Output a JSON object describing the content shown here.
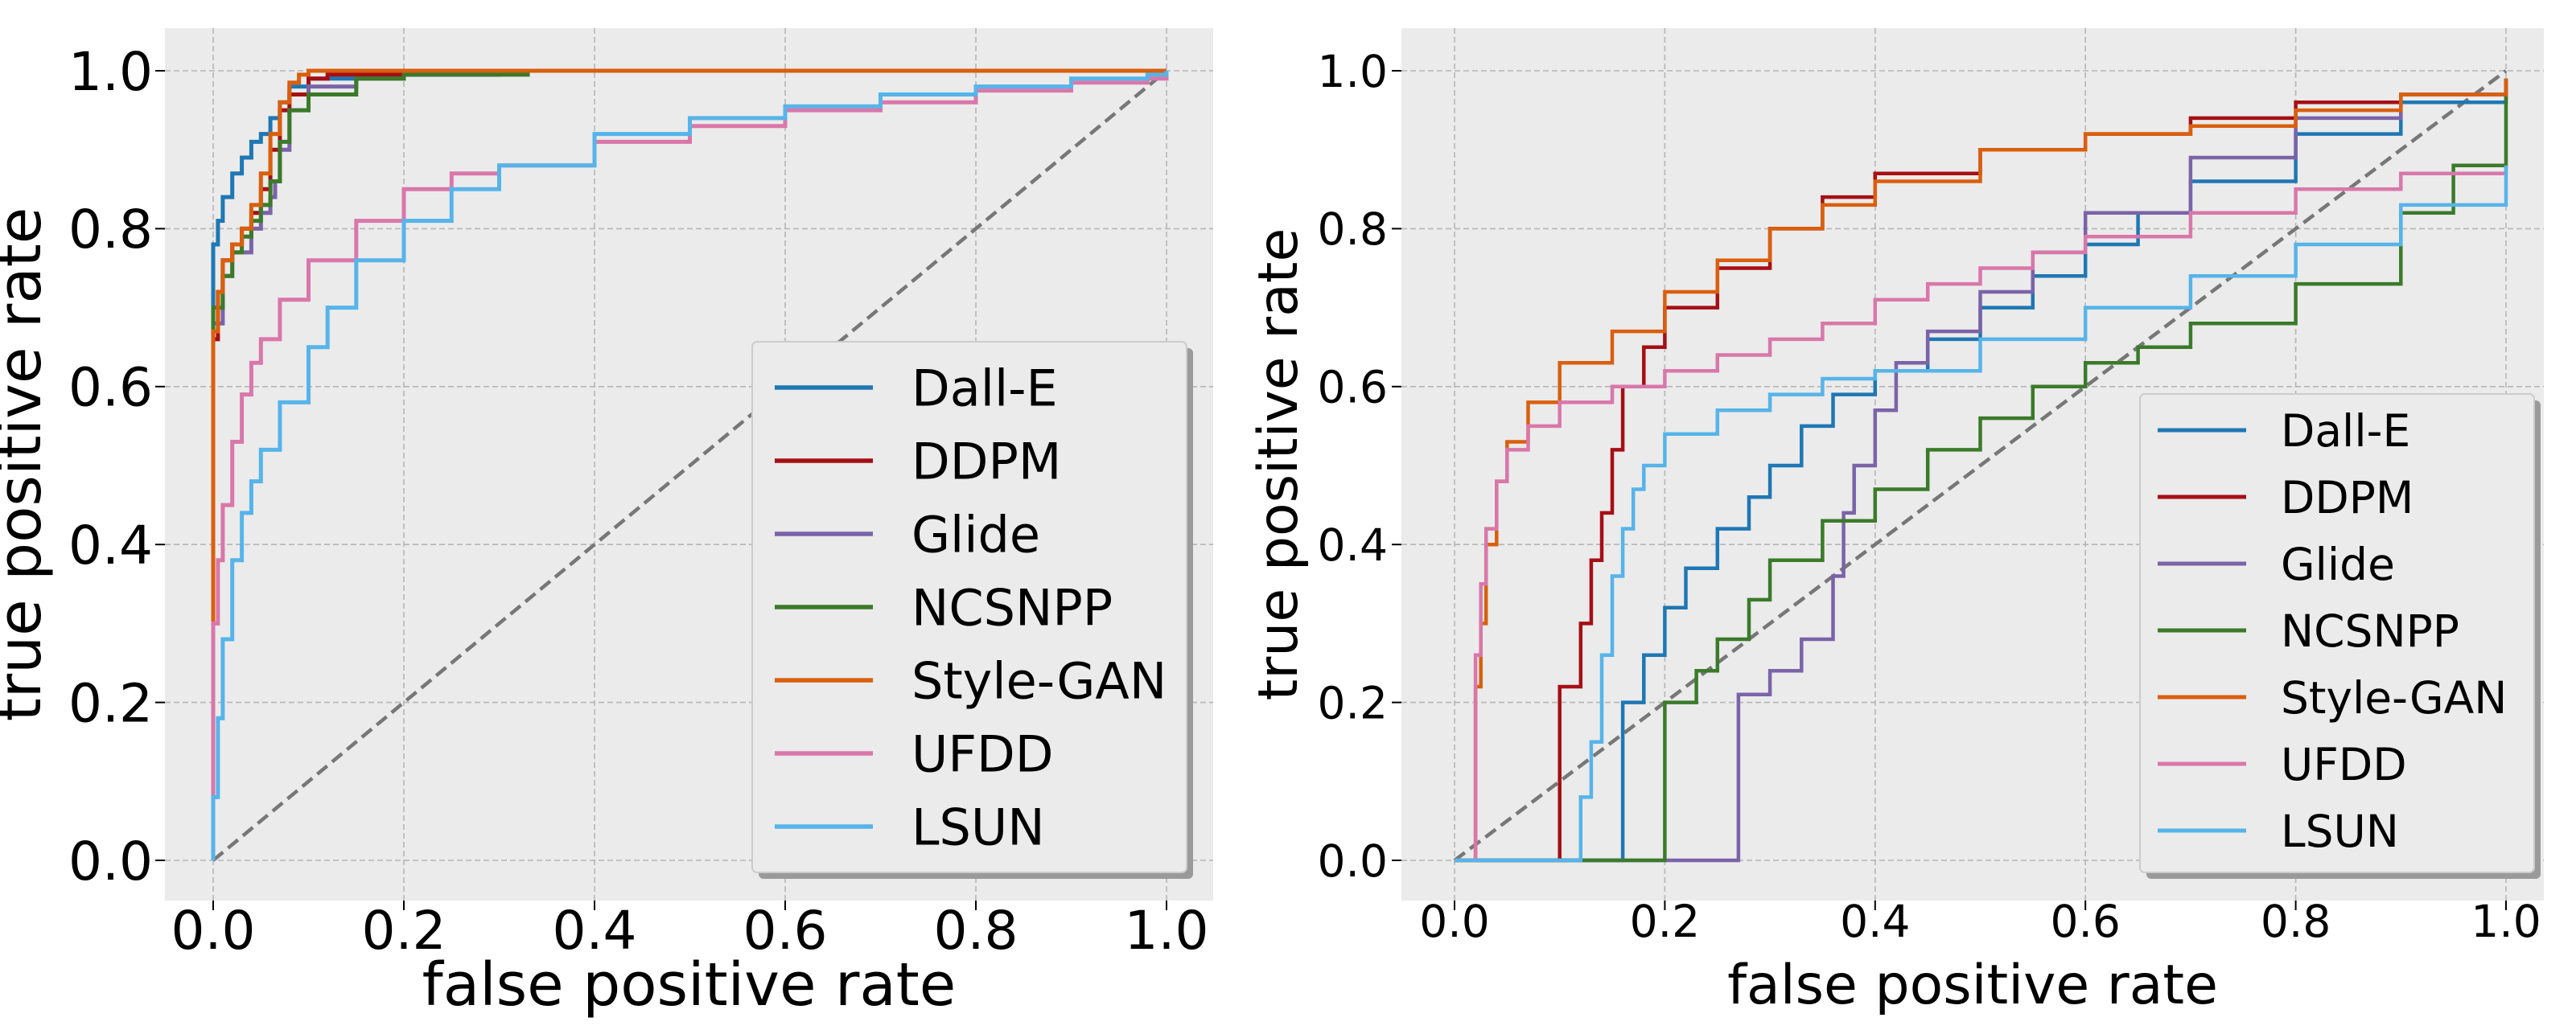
{
  "chart_data": [
    {
      "type": "line",
      "title": "",
      "xlabel": "false positive rate",
      "ylabel": "true positive rate",
      "xlim": [
        0,
        1
      ],
      "ylim": [
        0,
        1
      ],
      "xticks": [
        "0.0",
        "0.2",
        "0.4",
        "0.6",
        "0.8",
        "1.0"
      ],
      "yticks": [
        "0.0",
        "0.2",
        "0.4",
        "0.6",
        "0.8",
        "1.0"
      ],
      "grid": true,
      "legend_position": "lower-right",
      "diagonal": {
        "x": [
          0,
          1
        ],
        "y": [
          0,
          1
        ],
        "style": "dashed",
        "color": "#777777"
      },
      "series": [
        {
          "name": "Dall-E",
          "color": "#1f77b4",
          "x": [
            0,
            0,
            0.005,
            0.01,
            0.02,
            0.03,
            0.04,
            0.05,
            0.06,
            0.07,
            0.08,
            0.1,
            0.15,
            0.3,
            1.0
          ],
          "y": [
            0,
            0.78,
            0.81,
            0.84,
            0.87,
            0.89,
            0.91,
            0.92,
            0.94,
            0.96,
            0.98,
            0.99,
            0.995,
            1.0,
            1.0
          ]
        },
        {
          "name": "DDPM",
          "color": "#a50f15",
          "x": [
            0,
            0,
            0.005,
            0.01,
            0.02,
            0.03,
            0.04,
            0.05,
            0.06,
            0.07,
            0.08,
            0.1,
            0.12,
            0.2,
            1.0
          ],
          "y": [
            0,
            0.66,
            0.72,
            0.76,
            0.78,
            0.8,
            0.82,
            0.85,
            0.9,
            0.95,
            0.97,
            0.99,
            0.995,
            1.0,
            1.0
          ]
        },
        {
          "name": "Glide",
          "color": "#7b63a8",
          "x": [
            0,
            0,
            0.01,
            0.02,
            0.04,
            0.05,
            0.06,
            0.065,
            0.07,
            0.08,
            0.1,
            0.15,
            0.2,
            0.3,
            1.0
          ],
          "y": [
            0,
            0.68,
            0.74,
            0.77,
            0.8,
            0.82,
            0.84,
            0.86,
            0.9,
            0.95,
            0.98,
            0.99,
            0.995,
            1.0,
            1.0
          ]
        },
        {
          "name": "NCSNPP",
          "color": "#3b7a2a",
          "x": [
            0,
            0,
            0.01,
            0.02,
            0.03,
            0.04,
            0.05,
            0.06,
            0.07,
            0.08,
            0.1,
            0.15,
            0.2,
            0.33,
            1.0
          ],
          "y": [
            0,
            0.7,
            0.74,
            0.77,
            0.79,
            0.81,
            0.83,
            0.86,
            0.91,
            0.95,
            0.97,
            0.99,
            0.995,
            1.0,
            1.0
          ]
        },
        {
          "name": "Style-GAN",
          "color": "#d95f0e",
          "x": [
            0,
            0,
            0.005,
            0.01,
            0.02,
            0.03,
            0.04,
            0.05,
            0.06,
            0.07,
            0.08,
            0.09,
            0.1,
            0.12,
            1.0
          ],
          "y": [
            0,
            0.67,
            0.72,
            0.76,
            0.78,
            0.8,
            0.83,
            0.87,
            0.92,
            0.96,
            0.985,
            0.995,
            1.0,
            1.0,
            1.0
          ]
        },
        {
          "name": "UFDD",
          "color": "#d977aa",
          "x": [
            0,
            0,
            0.005,
            0.01,
            0.02,
            0.03,
            0.04,
            0.05,
            0.07,
            0.1,
            0.15,
            0.2,
            0.25,
            0.3,
            0.4,
            0.5,
            0.6,
            0.7,
            0.8,
            0.9,
            0.98,
            1.0
          ],
          "y": [
            0,
            0.3,
            0.38,
            0.45,
            0.53,
            0.59,
            0.63,
            0.66,
            0.71,
            0.76,
            0.81,
            0.85,
            0.87,
            0.88,
            0.91,
            0.93,
            0.95,
            0.96,
            0.975,
            0.985,
            0.99,
            1.0
          ]
        },
        {
          "name": "LSUN",
          "color": "#56b4e9",
          "x": [
            0,
            0,
            0.005,
            0.01,
            0.02,
            0.03,
            0.04,
            0.05,
            0.07,
            0.1,
            0.12,
            0.15,
            0.2,
            0.25,
            0.3,
            0.4,
            0.5,
            0.6,
            0.7,
            0.8,
            0.9,
            0.98,
            1.0
          ],
          "y": [
            0,
            0.08,
            0.18,
            0.28,
            0.38,
            0.44,
            0.48,
            0.52,
            0.58,
            0.65,
            0.7,
            0.76,
            0.81,
            0.85,
            0.88,
            0.92,
            0.94,
            0.955,
            0.97,
            0.98,
            0.99,
            0.995,
            1.0
          ]
        }
      ]
    },
    {
      "type": "line",
      "title": "",
      "xlabel": "false positive rate",
      "ylabel": "true positive rate",
      "xlim": [
        0,
        1
      ],
      "ylim": [
        0,
        1
      ],
      "xticks": [
        "0.0",
        "0.2",
        "0.4",
        "0.6",
        "0.8",
        "1.0"
      ],
      "yticks": [
        "0.0",
        "0.2",
        "0.4",
        "0.6",
        "0.8",
        "1.0"
      ],
      "grid": true,
      "legend_position": "lower-right",
      "diagonal": {
        "x": [
          0,
          1
        ],
        "y": [
          0,
          1
        ],
        "style": "dashed",
        "color": "#777777"
      },
      "series": [
        {
          "name": "Dall-E",
          "color": "#1f77b4",
          "x": [
            0,
            0.16,
            0.18,
            0.2,
            0.22,
            0.25,
            0.28,
            0.3,
            0.33,
            0.36,
            0.4,
            0.45,
            0.5,
            0.55,
            0.6,
            0.65,
            0.7,
            0.8,
            0.9,
            1.0
          ],
          "y": [
            0,
            0.2,
            0.26,
            0.32,
            0.37,
            0.42,
            0.46,
            0.5,
            0.55,
            0.59,
            0.62,
            0.66,
            0.7,
            0.74,
            0.78,
            0.82,
            0.86,
            0.92,
            0.96,
            0.99
          ]
        },
        {
          "name": "DDPM",
          "color": "#a50f15",
          "x": [
            0,
            0.1,
            0.12,
            0.13,
            0.14,
            0.15,
            0.16,
            0.18,
            0.2,
            0.25,
            0.3,
            0.35,
            0.4,
            0.5,
            0.6,
            0.7,
            0.8,
            0.9,
            1.0
          ],
          "y": [
            0,
            0.22,
            0.3,
            0.38,
            0.44,
            0.52,
            0.6,
            0.65,
            0.7,
            0.75,
            0.8,
            0.84,
            0.87,
            0.9,
            0.92,
            0.94,
            0.96,
            0.97,
            0.99
          ]
        },
        {
          "name": "Glide",
          "color": "#7b63a8",
          "x": [
            0,
            0.27,
            0.3,
            0.33,
            0.36,
            0.37,
            0.38,
            0.4,
            0.42,
            0.45,
            0.5,
            0.55,
            0.6,
            0.7,
            0.8,
            0.9,
            1.0
          ],
          "y": [
            0,
            0.21,
            0.24,
            0.28,
            0.36,
            0.44,
            0.5,
            0.57,
            0.63,
            0.67,
            0.72,
            0.77,
            0.82,
            0.89,
            0.94,
            0.97,
            0.99
          ]
        },
        {
          "name": "NCSNPP",
          "color": "#3b7a2a",
          "x": [
            0,
            0.2,
            0.23,
            0.25,
            0.28,
            0.3,
            0.35,
            0.4,
            0.45,
            0.5,
            0.55,
            0.6,
            0.65,
            0.7,
            0.8,
            0.9,
            0.95,
            1.0
          ],
          "y": [
            0,
            0.2,
            0.24,
            0.28,
            0.33,
            0.38,
            0.43,
            0.47,
            0.52,
            0.56,
            0.6,
            0.63,
            0.65,
            0.68,
            0.73,
            0.82,
            0.88,
            0.98
          ]
        },
        {
          "name": "Style-GAN",
          "color": "#d95f0e",
          "x": [
            0,
            0.02,
            0.025,
            0.03,
            0.04,
            0.05,
            0.07,
            0.1,
            0.15,
            0.2,
            0.25,
            0.3,
            0.35,
            0.4,
            0.5,
            0.6,
            0.7,
            0.8,
            0.9,
            1.0
          ],
          "y": [
            0,
            0.22,
            0.3,
            0.4,
            0.48,
            0.53,
            0.58,
            0.63,
            0.67,
            0.72,
            0.76,
            0.8,
            0.83,
            0.86,
            0.9,
            0.92,
            0.93,
            0.95,
            0.97,
            0.99
          ]
        },
        {
          "name": "UFDD",
          "color": "#d977aa",
          "x": [
            0,
            0.02,
            0.025,
            0.03,
            0.04,
            0.05,
            0.07,
            0.1,
            0.15,
            0.2,
            0.25,
            0.3,
            0.35,
            0.4,
            0.45,
            0.5,
            0.55,
            0.6,
            0.7,
            0.8,
            0.9,
            1.0
          ],
          "y": [
            0,
            0.26,
            0.35,
            0.42,
            0.48,
            0.52,
            0.55,
            0.58,
            0.6,
            0.62,
            0.64,
            0.66,
            0.68,
            0.71,
            0.73,
            0.75,
            0.77,
            0.79,
            0.82,
            0.85,
            0.87,
            0.88
          ]
        },
        {
          "name": "LSUN",
          "color": "#56b4e9",
          "x": [
            0,
            0.12,
            0.13,
            0.14,
            0.15,
            0.16,
            0.17,
            0.18,
            0.2,
            0.25,
            0.3,
            0.35,
            0.4,
            0.5,
            0.6,
            0.7,
            0.8,
            0.9,
            1.0
          ],
          "y": [
            0,
            0.08,
            0.15,
            0.26,
            0.36,
            0.42,
            0.47,
            0.5,
            0.54,
            0.57,
            0.59,
            0.61,
            0.62,
            0.66,
            0.7,
            0.74,
            0.78,
            0.83,
            0.88
          ]
        }
      ]
    }
  ]
}
